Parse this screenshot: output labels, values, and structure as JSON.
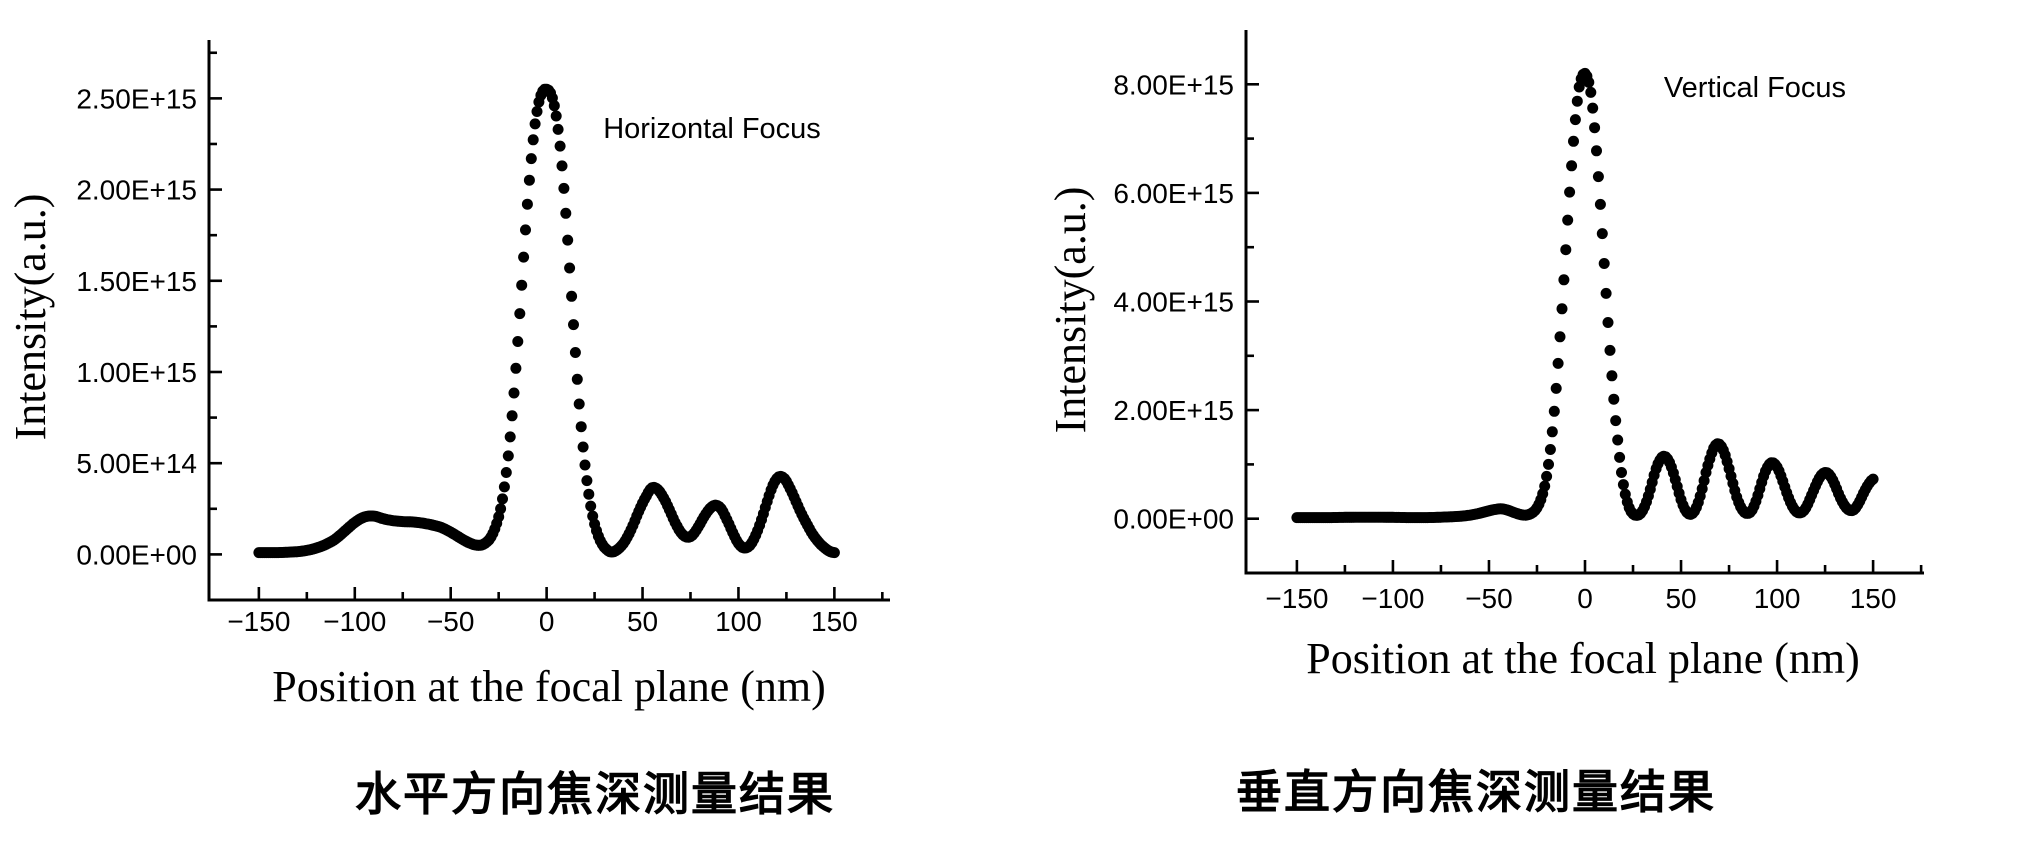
{
  "figure": {
    "background": "#ffffff",
    "marker_color": "#000000"
  },
  "chart_data": [
    {
      "type": "scatter",
      "name": "horizontal-focus",
      "annotation": "Horizontal Focus",
      "caption": "水平方向焦深测量结果",
      "xlabel": "Position at the focal plane (nm)",
      "ylabel": "Intensity(a.u.)",
      "x_axis": {
        "range": [
          -176,
          179
        ],
        "major_ticks": [
          -150,
          -100,
          -50,
          0,
          50,
          100,
          150
        ],
        "minor_ticks": [
          -125,
          -75,
          -25,
          25,
          75,
          125,
          175
        ],
        "labels": [
          "−150",
          "−100",
          "−50",
          "0",
          "50",
          "100",
          "150"
        ]
      },
      "y_axis": {
        "unit_scale": 1000000000000000.0,
        "range": [
          -0.25,
          2.82
        ],
        "major_ticks": [
          0,
          0.5,
          1.0,
          1.5,
          2.0,
          2.5
        ],
        "minor_ticks": [
          0.25,
          0.75,
          1.25,
          1.75,
          2.25,
          2.75
        ],
        "labels": [
          "0.00E+00",
          "5.00E+14",
          "1.00E+15",
          "1.50E+15",
          "2.00E+15",
          "2.50E+15"
        ]
      },
      "points": [
        [
          -150,
          0.01
        ],
        [
          -145,
          0.01
        ],
        [
          -140,
          0.01
        ],
        [
          -135,
          0.012
        ],
        [
          -130,
          0.015
        ],
        [
          -125,
          0.022
        ],
        [
          -120,
          0.035
        ],
        [
          -115,
          0.055
        ],
        [
          -110,
          0.085
        ],
        [
          -105,
          0.13
        ],
        [
          -100,
          0.175
        ],
        [
          -95,
          0.205
        ],
        [
          -90,
          0.21
        ],
        [
          -85,
          0.195
        ],
        [
          -80,
          0.185
        ],
        [
          -75,
          0.18
        ],
        [
          -70,
          0.178
        ],
        [
          -65,
          0.172
        ],
        [
          -60,
          0.162
        ],
        [
          -55,
          0.148
        ],
        [
          -50,
          0.122
        ],
        [
          -45,
          0.09
        ],
        [
          -40,
          0.062
        ],
        [
          -36,
          0.05
        ],
        [
          -33,
          0.055
        ],
        [
          -30,
          0.08
        ],
        [
          -28,
          0.115
        ],
        [
          -26,
          0.17
        ],
        [
          -24,
          0.25
        ],
        [
          -22,
          0.37
        ],
        [
          -20,
          0.54
        ],
        [
          -18,
          0.76
        ],
        [
          -16,
          1.02
        ],
        [
          -14,
          1.32
        ],
        [
          -12,
          1.63
        ],
        [
          -10,
          1.92
        ],
        [
          -8,
          2.17
        ],
        [
          -6,
          2.36
        ],
        [
          -4,
          2.48
        ],
        [
          -2,
          2.54
        ],
        [
          0,
          2.55
        ],
        [
          2,
          2.53
        ],
        [
          4,
          2.46
        ],
        [
          6,
          2.33
        ],
        [
          8,
          2.13
        ],
        [
          10,
          1.87
        ],
        [
          12,
          1.57
        ],
        [
          14,
          1.26
        ],
        [
          16,
          0.96
        ],
        [
          18,
          0.7
        ],
        [
          20,
          0.49
        ],
        [
          22,
          0.33
        ],
        [
          24,
          0.21
        ],
        [
          26,
          0.13
        ],
        [
          28,
          0.075
        ],
        [
          30,
          0.04
        ],
        [
          33,
          0.015
        ],
        [
          36,
          0.02
        ],
        [
          40,
          0.06
        ],
        [
          44,
          0.135
        ],
        [
          48,
          0.235
        ],
        [
          52,
          0.32
        ],
        [
          55,
          0.365
        ],
        [
          58,
          0.355
        ],
        [
          61,
          0.31
        ],
        [
          64,
          0.245
        ],
        [
          67,
          0.175
        ],
        [
          70,
          0.12
        ],
        [
          73,
          0.095
        ],
        [
          76,
          0.105
        ],
        [
          79,
          0.15
        ],
        [
          82,
          0.205
        ],
        [
          85,
          0.25
        ],
        [
          88,
          0.27
        ],
        [
          91,
          0.25
        ],
        [
          94,
          0.19
        ],
        [
          97,
          0.12
        ],
        [
          100,
          0.06
        ],
        [
          103,
          0.035
        ],
        [
          106,
          0.05
        ],
        [
          109,
          0.105
        ],
        [
          112,
          0.19
        ],
        [
          115,
          0.29
        ],
        [
          118,
          0.38
        ],
        [
          121,
          0.425
        ],
        [
          124,
          0.415
        ],
        [
          127,
          0.36
        ],
        [
          130,
          0.29
        ],
        [
          133,
          0.22
        ],
        [
          136,
          0.16
        ],
        [
          139,
          0.105
        ],
        [
          142,
          0.065
        ],
        [
          145,
          0.035
        ],
        [
          148,
          0.015
        ],
        [
          150,
          0.01
        ]
      ]
    },
    {
      "type": "scatter",
      "name": "vertical-focus",
      "annotation": "Vertical Focus",
      "caption": "垂直方向焦深测量结果",
      "xlabel": "Position at the focal plane (nm)",
      "ylabel": "Intensity(a.u.)",
      "x_axis": {
        "range": [
          -176.5,
          176.5
        ],
        "major_ticks": [
          -150,
          -100,
          -50,
          0,
          50,
          100,
          150
        ],
        "minor_ticks": [
          -125,
          -75,
          -25,
          25,
          75,
          125,
          175
        ],
        "labels": [
          "−150",
          "−100",
          "−50",
          "0",
          "50",
          "100",
          "150"
        ]
      },
      "y_axis": {
        "unit_scale": 1000000000000000.0,
        "range": [
          -1.0,
          9.0
        ],
        "major_ticks": [
          0,
          2,
          4,
          6,
          8
        ],
        "minor_ticks": [
          1,
          3,
          5,
          7
        ],
        "labels": [
          "0.00E+00",
          "2.00E+15",
          "4.00E+15",
          "6.00E+15",
          "8.00E+15"
        ]
      },
      "points": [
        [
          -150,
          0.02
        ],
        [
          -145,
          0.02
        ],
        [
          -140,
          0.02
        ],
        [
          -135,
          0.02
        ],
        [
          -130,
          0.022
        ],
        [
          -125,
          0.025
        ],
        [
          -120,
          0.027
        ],
        [
          -115,
          0.028
        ],
        [
          -110,
          0.028
        ],
        [
          -105,
          0.027
        ],
        [
          -100,
          0.025
        ],
        [
          -95,
          0.022
        ],
        [
          -90,
          0.02
        ],
        [
          -85,
          0.02
        ],
        [
          -80,
          0.022
        ],
        [
          -75,
          0.028
        ],
        [
          -70,
          0.035
        ],
        [
          -65,
          0.045
        ],
        [
          -60,
          0.065
        ],
        [
          -55,
          0.1
        ],
        [
          -50,
          0.145
        ],
        [
          -46,
          0.175
        ],
        [
          -43,
          0.18
        ],
        [
          -40,
          0.155
        ],
        [
          -37,
          0.115
        ],
        [
          -34,
          0.08
        ],
        [
          -31,
          0.065
        ],
        [
          -29,
          0.08
        ],
        [
          -27,
          0.12
        ],
        [
          -25,
          0.2
        ],
        [
          -23,
          0.35
        ],
        [
          -21,
          0.6
        ],
        [
          -19,
          1.0
        ],
        [
          -17,
          1.6
        ],
        [
          -15,
          2.4
        ],
        [
          -13,
          3.35
        ],
        [
          -11,
          4.4
        ],
        [
          -9,
          5.5
        ],
        [
          -7,
          6.5
        ],
        [
          -5,
          7.35
        ],
        [
          -3,
          7.95
        ],
        [
          -1,
          8.18
        ],
        [
          0,
          8.2
        ],
        [
          1,
          8.15
        ],
        [
          3,
          7.85
        ],
        [
          5,
          7.2
        ],
        [
          7,
          6.3
        ],
        [
          9,
          5.25
        ],
        [
          11,
          4.15
        ],
        [
          13,
          3.1
        ],
        [
          15,
          2.2
        ],
        [
          17,
          1.45
        ],
        [
          19,
          0.85
        ],
        [
          21,
          0.45
        ],
        [
          23,
          0.2
        ],
        [
          25,
          0.09
        ],
        [
          27,
          0.06
        ],
        [
          29,
          0.1
        ],
        [
          31,
          0.22
        ],
        [
          33,
          0.42
        ],
        [
          35,
          0.67
        ],
        [
          37,
          0.92
        ],
        [
          39,
          1.08
        ],
        [
          41,
          1.15
        ],
        [
          43,
          1.1
        ],
        [
          45,
          0.95
        ],
        [
          47,
          0.72
        ],
        [
          49,
          0.47
        ],
        [
          51,
          0.25
        ],
        [
          53,
          0.12
        ],
        [
          55,
          0.08
        ],
        [
          57,
          0.14
        ],
        [
          59,
          0.3
        ],
        [
          61,
          0.55
        ],
        [
          63,
          0.85
        ],
        [
          65,
          1.1
        ],
        [
          67,
          1.3
        ],
        [
          69,
          1.38
        ],
        [
          71,
          1.33
        ],
        [
          73,
          1.17
        ],
        [
          75,
          0.92
        ],
        [
          77,
          0.65
        ],
        [
          79,
          0.4
        ],
        [
          81,
          0.22
        ],
        [
          83,
          0.12
        ],
        [
          85,
          0.1
        ],
        [
          87,
          0.16
        ],
        [
          89,
          0.32
        ],
        [
          91,
          0.55
        ],
        [
          93,
          0.78
        ],
        [
          95,
          0.95
        ],
        [
          97,
          1.03
        ],
        [
          99,
          1.0
        ],
        [
          101,
          0.88
        ],
        [
          103,
          0.69
        ],
        [
          105,
          0.48
        ],
        [
          107,
          0.3
        ],
        [
          109,
          0.17
        ],
        [
          111,
          0.11
        ],
        [
          113,
          0.12
        ],
        [
          115,
          0.2
        ],
        [
          117,
          0.35
        ],
        [
          119,
          0.52
        ],
        [
          121,
          0.68
        ],
        [
          123,
          0.8
        ],
        [
          125,
          0.85
        ],
        [
          127,
          0.82
        ],
        [
          129,
          0.71
        ],
        [
          131,
          0.55
        ],
        [
          133,
          0.38
        ],
        [
          135,
          0.25
        ],
        [
          137,
          0.17
        ],
        [
          139,
          0.15
        ],
        [
          141,
          0.2
        ],
        [
          143,
          0.32
        ],
        [
          145,
          0.47
        ],
        [
          147,
          0.6
        ],
        [
          149,
          0.7
        ],
        [
          150,
          0.73
        ]
      ]
    }
  ]
}
